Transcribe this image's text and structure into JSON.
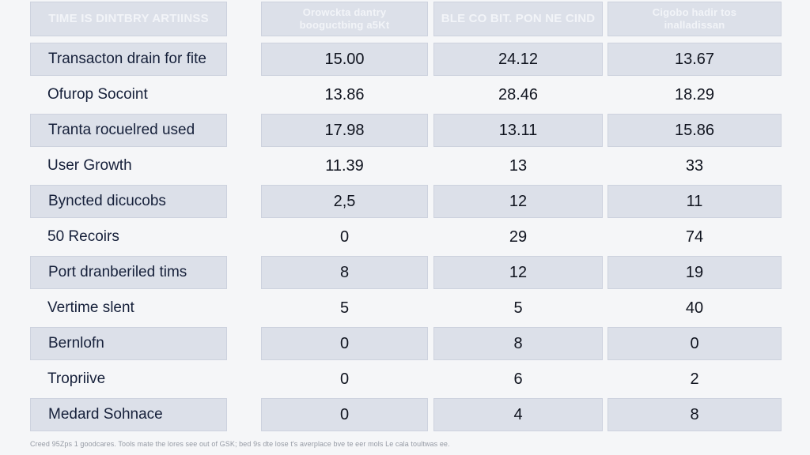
{
  "colors": {
    "page_bg": "#f5f6f8",
    "header_bg": "#27406e",
    "header_border": "#1b2d52",
    "header_text": "#f2f4f8",
    "row_alt_bg": "#dce0e9",
    "row_alt_border": "#cdd2de",
    "label_text": "#16203a",
    "value_text": "#10141f",
    "footer_text": "#959aa4"
  },
  "table": {
    "columns": [
      {
        "lines": [
          "TIME IS DINTBRY ARTIINSS"
        ]
      },
      {
        "lines": [
          "Orowckta dantry",
          "booguctbing a5Kt"
        ]
      },
      {
        "lines": [
          "BLE CO BIT. PON NE CIND"
        ]
      },
      {
        "lines": [
          "Cigobo hadir tos",
          "inalladissan"
        ]
      }
    ],
    "rows": [
      {
        "label": "Transacton drain for fite",
        "values": [
          "15.00",
          "24.12",
          "13.67"
        ]
      },
      {
        "label": "Ofurop Socoint",
        "values": [
          "13.86",
          "28.46",
          "18.29"
        ]
      },
      {
        "label": "Tranta rocuelred used",
        "values": [
          "17.98",
          "13.11",
          "15.86"
        ]
      },
      {
        "label": "User Growth",
        "values": [
          "11.39",
          "13",
          "33"
        ]
      },
      {
        "label": "Byncted dicucobs",
        "values": [
          "2,5",
          "12",
          "11"
        ]
      },
      {
        "label": "50 Recoirs",
        "values": [
          "0",
          "29",
          "74"
        ]
      },
      {
        "label": "Port dranberiled tims",
        "values": [
          "8",
          "12",
          "19"
        ]
      },
      {
        "label": "Vertime slent",
        "values": [
          "5",
          "5",
          "40"
        ]
      },
      {
        "label": "Bernlofn",
        "values": [
          "0",
          "8",
          "0"
        ]
      },
      {
        "label": "Tropriive",
        "values": [
          "0",
          "6",
          "2"
        ]
      },
      {
        "label": "Medard Sohnace",
        "values": [
          "0",
          "4",
          "8"
        ]
      }
    ]
  },
  "footer": {
    "note": "Creed 95Zps 1 goodcares. Tools mate the lores see out of GSK; bed 9s dte lose t's averplace bve te eer mols Le cala toultwas ee."
  }
}
